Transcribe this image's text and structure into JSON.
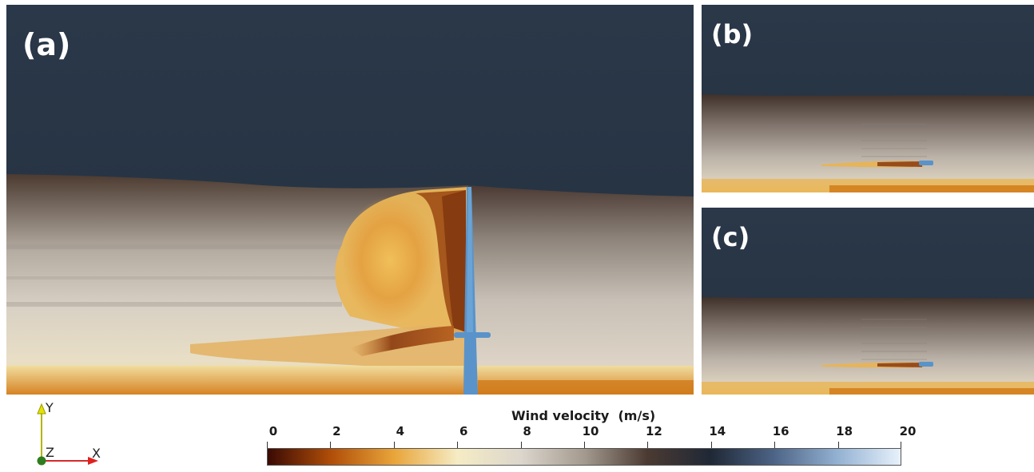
{
  "panels": {
    "a": {
      "label": "(a)"
    },
    "b": {
      "label": "(b)"
    },
    "c": {
      "label": "(c)"
    }
  },
  "axes_triad": {
    "y": "Y",
    "z": "Z",
    "x": "X"
  },
  "colorbar": {
    "title": "Wind velocity  (m/s)",
    "ticks": [
      "0",
      "2",
      "4",
      "6",
      "8",
      "10",
      "12",
      "14",
      "16",
      "18",
      "20"
    ],
    "min": 0,
    "max": 20,
    "colors": [
      "#3a0a04",
      "#b04e08",
      "#e9a53a",
      "#f5ecc4",
      "#dcd6cc",
      "#a49a8f",
      "#4b3a32",
      "#1f2836",
      "#4d6486",
      "#93b1d2",
      "#e7f1fb"
    ]
  },
  "colors": {
    "sky": "#2b3a4c",
    "turbine": "#5a93c9"
  }
}
